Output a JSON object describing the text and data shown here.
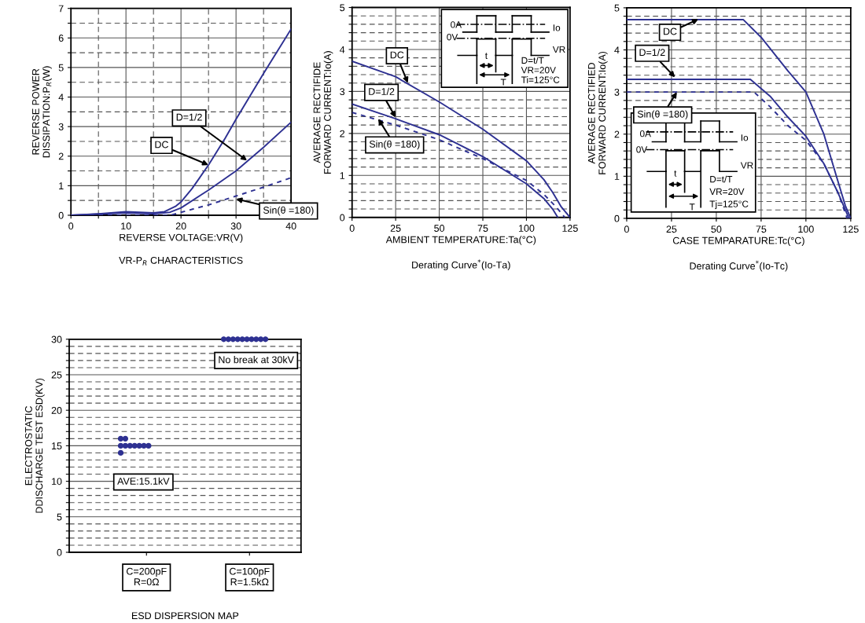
{
  "chart_data": [
    {
      "type": "line",
      "title": "VR-P$_{R}$ CHARACTERISTICS",
      "xlabel": "REVERSE VOLTAGE:VR(V)",
      "ylabel": "REVERSE POWER\nDISSIPATION:P$_{R}$(W)",
      "xlim": [
        0,
        40
      ],
      "ylim": [
        0,
        7
      ],
      "xticks": [
        0,
        {
          "value": 5,
          "label": null
        },
        10,
        {
          "value": 15,
          "label": null
        },
        20,
        {
          "value": 25,
          "label": null
        },
        30,
        {
          "value": 35,
          "label": null
        },
        40
      ],
      "yticks": [
        0,
        {
          "value": 0.5,
          "label": null
        },
        1,
        {
          "value": 1.5,
          "label": null
        },
        2,
        {
          "value": 2.5,
          "label": null
        },
        3,
        {
          "value": 3.5,
          "label": null
        },
        4,
        {
          "value": 4.5,
          "label": null
        },
        5,
        {
          "value": 5.5,
          "label": null
        },
        6,
        {
          "value": 6.5,
          "label": null
        },
        7
      ],
      "grid": true,
      "series": [
        {
          "color": "#2e3192",
          "line_style": "solid",
          "x": [
            0,
            5,
            10,
            15,
            17,
            19,
            20,
            22,
            25,
            28,
            30,
            35,
            40
          ],
          "values": [
            0,
            0.05,
            0.12,
            0.08,
            0.12,
            0.3,
            0.45,
            0.9,
            1.7,
            2.6,
            3.25,
            4.8,
            6.3
          ]
        },
        {
          "color": "#2e3192",
          "line_style": "solid",
          "x": [
            0,
            10,
            15,
            18,
            20,
            25,
            30,
            35,
            40
          ],
          "values": [
            0,
            0.08,
            0.05,
            0.1,
            0.25,
            0.85,
            1.5,
            2.3,
            3.15
          ]
        },
        {
          "color": "#2e3192",
          "line_style": "dashed",
          "x": [
            0,
            18,
            20,
            25,
            30,
            35,
            40
          ],
          "values": [
            0,
            0,
            0.1,
            0.35,
            0.65,
            0.95,
            1.27
          ]
        }
      ],
      "annotations": [
        {
          "text": "DC",
          "x": 25,
          "y": 1.7
        },
        {
          "text": "D=1/2",
          "x": 32,
          "y": 1.85
        },
        {
          "text": "Sin(θ =180)",
          "x": 30,
          "y": 0.55
        }
      ]
    },
    {
      "type": "line",
      "title": "Derating Curve$^{*}$(Io-Ta)",
      "xlabel": "AMBIENT TEMPERATURE:Ta(°C)",
      "ylabel": "AVERAGE RECTIFIDE\nFORWARD CURRENT:Io(A)",
      "xlim": [
        0,
        125
      ],
      "ylim": [
        0,
        5
      ],
      "xticks": [
        0,
        25,
        50,
        75,
        100,
        125
      ],
      "yticks": [
        0,
        {
          "value": 0.2,
          "label": null
        },
        {
          "value": 0.4,
          "label": null
        },
        {
          "value": 0.6,
          "label": null
        },
        {
          "value": 0.8,
          "label": null
        },
        1,
        {
          "value": 1.2,
          "label": null
        },
        {
          "value": 1.4,
          "label": null
        },
        {
          "value": 1.6,
          "label": null
        },
        {
          "value": 1.8,
          "label": null
        },
        2,
        {
          "value": 2.2,
          "label": null
        },
        {
          "value": 2.4,
          "label": null
        },
        {
          "value": 2.6,
          "label": null
        },
        {
          "value": 2.8,
          "label": null
        },
        3,
        {
          "value": 3.2,
          "label": null
        },
        {
          "value": 3.4,
          "label": null
        },
        {
          "value": 3.6,
          "label": null
        },
        {
          "value": 3.8,
          "label": null
        },
        4,
        {
          "value": 4.2,
          "label": null
        },
        {
          "value": 4.4,
          "label": null
        },
        {
          "value": 4.6,
          "label": null
        },
        {
          "value": 4.8,
          "label": null
        },
        5
      ],
      "grid": true,
      "series": [
        {
          "color": "#2e3192",
          "line_style": "solid",
          "x": [
            0,
            25,
            50,
            75,
            100,
            110,
            115,
            120,
            125
          ],
          "values": [
            3.72,
            3.35,
            2.75,
            2.1,
            1.35,
            0.9,
            0.6,
            0.25,
            0
          ]
        },
        {
          "color": "#2e3192",
          "line_style": "solid",
          "x": [
            0,
            25,
            50,
            75,
            100,
            110,
            115,
            118
          ],
          "values": [
            2.7,
            2.35,
            1.97,
            1.45,
            0.8,
            0.45,
            0.2,
            0
          ]
        },
        {
          "color": "#2e3192",
          "line_style": "dashed",
          "x": [
            0,
            25,
            50,
            75,
            100,
            110,
            117,
            122
          ],
          "values": [
            2.5,
            2.2,
            1.85,
            1.4,
            0.88,
            0.55,
            0.25,
            0
          ]
        }
      ],
      "annotations": [
        {
          "text": "DC",
          "x": 32,
          "y": 3.2
        },
        {
          "text": "D=1/2",
          "x": 25,
          "y": 2.38
        },
        {
          "text": "Sin(θ =180)",
          "x": 15,
          "y": 2.35
        },
        "0A",
        "Io",
        "0V",
        "VR",
        "t",
        "T",
        "D=t/T",
        "VR=20V",
        "Ti=125°C"
      ]
    },
    {
      "type": "line",
      "title": "Derating Curve$^{*}$(Io-Tc)",
      "xlabel": "CASE TEMPARATURE:Tc(°C)",
      "ylabel": "AVERAGE RECTIFIED\nFORWARD CURRENT:Io(A)",
      "xlim": [
        0,
        125
      ],
      "ylim": [
        0,
        5
      ],
      "xticks": [
        0,
        25,
        50,
        75,
        100,
        125
      ],
      "yticks": [
        0,
        {
          "value": 0.2,
          "label": null
        },
        {
          "value": 0.4,
          "label": null
        },
        {
          "value": 0.6,
          "label": null
        },
        {
          "value": 0.8,
          "label": null
        },
        1,
        {
          "value": 1.2,
          "label": null
        },
        {
          "value": 1.4,
          "label": null
        },
        {
          "value": 1.6,
          "label": null
        },
        {
          "value": 1.8,
          "label": null
        },
        2,
        {
          "value": 2.2,
          "label": null
        },
        {
          "value": 2.4,
          "label": null
        },
        {
          "value": 2.6,
          "label": null
        },
        {
          "value": 2.8,
          "label": null
        },
        3,
        {
          "value": 3.2,
          "label": null
        },
        {
          "value": 3.4,
          "label": null
        },
        {
          "value": 3.6,
          "label": null
        },
        {
          "value": 3.8,
          "label": null
        },
        4,
        {
          "value": 4.2,
          "label": null
        },
        {
          "value": 4.4,
          "label": null
        },
        {
          "value": 4.6,
          "label": null
        },
        {
          "value": 4.8,
          "label": null
        },
        5
      ],
      "grid": true,
      "series": [
        {
          "color": "#2e3192",
          "line_style": "solid",
          "x": [
            0,
            65,
            75,
            90,
            100,
            110,
            117,
            122,
            125
          ],
          "values": [
            4.72,
            4.72,
            4.3,
            3.5,
            3.0,
            2.0,
            1.0,
            0.3,
            0
          ]
        },
        {
          "color": "#2e3192",
          "line_style": "solid",
          "x": [
            0,
            69,
            80,
            90,
            100,
            110,
            118,
            122,
            124
          ],
          "values": [
            3.3,
            3.3,
            2.9,
            2.4,
            1.95,
            1.3,
            0.6,
            0.2,
            0
          ]
        },
        {
          "color": "#2e3192",
          "line_style": "dashed",
          "x": [
            0,
            71,
            80,
            90,
            100,
            110,
            118,
            123
          ],
          "values": [
            3.0,
            3.0,
            2.65,
            2.2,
            1.85,
            1.3,
            0.6,
            0
          ]
        }
      ],
      "annotations": [
        {
          "text": "DC",
          "x": 40,
          "y": 4.73
        },
        {
          "text": "D=1/2",
          "x": 27,
          "y": 3.35
        },
        {
          "text": "Sin(θ =180)",
          "x": 28,
          "y": 3.0
        },
        "0A",
        "Io",
        "0V",
        "VR",
        "t",
        "T",
        "D=t/T",
        "VR=20V",
        "Tj=125°C"
      ]
    },
    {
      "type": "scatter",
      "title": "ESD DISPERSION MAP",
      "ylabel": "ELECTROSTATIC\nDDISCHARGE TEST ESD(KV)",
      "categories": [
        "C=200pF\nR=0Ω",
        "C=100pF\nR=1.5kΩ"
      ],
      "ylim": [
        0,
        30
      ],
      "yticks": [
        0,
        {
          "value": 1,
          "label": null
        },
        {
          "value": 2,
          "label": null
        },
        {
          "value": 3,
          "label": null
        },
        {
          "value": 4,
          "label": null
        },
        5,
        {
          "value": 6,
          "label": null
        },
        {
          "value": 7,
          "label": null
        },
        {
          "value": 8,
          "label": null
        },
        {
          "value": 9,
          "label": null
        },
        10,
        {
          "value": 11,
          "label": null
        },
        {
          "value": 12,
          "label": null
        },
        {
          "value": 13,
          "label": null
        },
        {
          "value": 14,
          "label": null
        },
        15,
        {
          "value": 16,
          "label": null
        },
        {
          "value": 17,
          "label": null
        },
        {
          "value": 18,
          "label": null
        },
        {
          "value": 19,
          "label": null
        },
        20,
        {
          "value": 21,
          "label": null
        },
        {
          "value": 22,
          "label": null
        },
        {
          "value": 23,
          "label": null
        },
        {
          "value": 24,
          "label": null
        },
        25,
        {
          "value": 26,
          "label": null
        },
        {
          "value": 27,
          "label": null
        },
        {
          "value": 28,
          "label": null
        },
        {
          "value": 29,
          "label": null
        },
        30
      ],
      "grid": "y",
      "marker": "circle",
      "series": [
        {
          "color": "#2e3192",
          "x": [
            "C=200pF\nR=0Ω",
            "C=200pF\nR=0Ω",
            "C=200pF\nR=0Ω",
            "C=200pF\nR=0Ω",
            "C=200pF\nR=0Ω",
            "C=200pF\nR=0Ω",
            "C=200pF\nR=0Ω",
            "C=200pF\nR=0Ω",
            "C=200pF\nR=0Ω",
            "C=200pF\nR=0Ω",
            "C=100pF\nR=1.5kΩ",
            "C=100pF\nR=1.5kΩ",
            "C=100pF\nR=1.5kΩ",
            "C=100pF\nR=1.5kΩ",
            "C=100pF\nR=1.5kΩ",
            "C=100pF\nR=1.5kΩ",
            "C=100pF\nR=1.5kΩ",
            "C=100pF\nR=1.5kΩ",
            "C=100pF\nR=1.5kΩ",
            "C=100pF\nR=1.5kΩ"
          ],
          "values": [
            16,
            16,
            15,
            15,
            15,
            15,
            15,
            15,
            15,
            14,
            30,
            30,
            30,
            30,
            30,
            30,
            30,
            30,
            30,
            30
          ]
        }
      ],
      "annotations": [
        "No break at 30kV",
        "AVE:15.1kV"
      ]
    }
  ]
}
